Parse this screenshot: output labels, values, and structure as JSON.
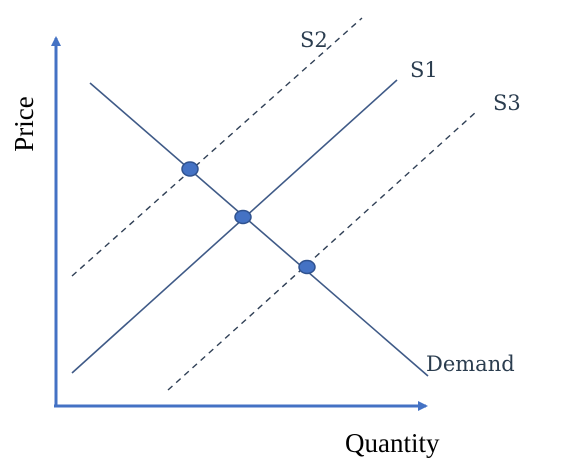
{
  "axes": {
    "x_label": "Quantity",
    "y_label": "Price"
  },
  "curves": {
    "s1_label": "S1",
    "s2_label": "S2",
    "s3_label": "S3",
    "demand_label": "Demand"
  },
  "colors": {
    "axis": "#4472c4",
    "curve": "#3f5a87",
    "dashed_curve": "#2f3f55",
    "point_fill": "#4472c4",
    "point_stroke": "#2f528f"
  },
  "styles": {
    "s1": "solid",
    "s2": "dashed",
    "s3": "dashed",
    "demand": "solid"
  }
}
